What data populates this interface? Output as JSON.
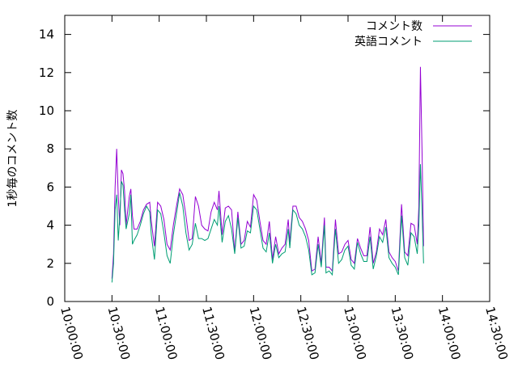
{
  "chart_data": {
    "type": "line",
    "title": "",
    "xlabel": "",
    "ylabel": "1秒毎のコメント数",
    "ylim": [
      0,
      15
    ],
    "yticks": [
      0,
      2,
      4,
      6,
      8,
      10,
      12,
      14
    ],
    "xlim": [
      "10:00:00",
      "14:30:00"
    ],
    "xticks": [
      "10:00:00",
      "10:30:00",
      "11:00:00",
      "11:30:00",
      "12:00:00",
      "12:30:00",
      "13:00:00",
      "13:30:00",
      "14:00:00",
      "14:30:00"
    ],
    "grid": false,
    "legend": "top-right",
    "series": [
      {
        "name": "コメント数",
        "color": "#9400d3",
        "points": [
          [
            "10:30:00",
            1.2
          ],
          [
            "10:31:00",
            2.5
          ],
          [
            "10:32:00",
            6.0
          ],
          [
            "10:33:00",
            8.0
          ],
          [
            "10:34:00",
            5.5
          ],
          [
            "10:35:00",
            4.0
          ],
          [
            "10:36:00",
            6.9
          ],
          [
            "10:37:00",
            6.7
          ],
          [
            "10:38:00",
            5.8
          ],
          [
            "10:39:00",
            4.0
          ],
          [
            "10:41:00",
            5.5
          ],
          [
            "10:42:00",
            5.9
          ],
          [
            "10:43:00",
            4.5
          ],
          [
            "10:44:00",
            3.8
          ],
          [
            "10:46:00",
            3.8
          ],
          [
            "10:48:00",
            4.2
          ],
          [
            "10:50:00",
            4.8
          ],
          [
            "10:52:00",
            5.1
          ],
          [
            "10:54:00",
            5.2
          ],
          [
            "10:55:00",
            4.2
          ],
          [
            "10:57:00",
            2.9
          ],
          [
            "10:59:00",
            5.2
          ],
          [
            "11:01:00",
            5.0
          ],
          [
            "11:03:00",
            4.3
          ],
          [
            "11:05:00",
            3.0
          ],
          [
            "11:07:00",
            2.7
          ],
          [
            "11:09:00",
            4.0
          ],
          [
            "11:11:00",
            5.0
          ],
          [
            "11:13:00",
            5.9
          ],
          [
            "11:15:00",
            5.6
          ],
          [
            "11:17:00",
            4.5
          ],
          [
            "11:19:00",
            3.2
          ],
          [
            "11:21:00",
            3.3
          ],
          [
            "11:23:00",
            5.5
          ],
          [
            "11:25:00",
            5.0
          ],
          [
            "11:27:00",
            4.0
          ],
          [
            "11:29:00",
            3.8
          ],
          [
            "11:31:00",
            3.7
          ],
          [
            "11:33:00",
            4.7
          ],
          [
            "11:35:00",
            5.2
          ],
          [
            "11:37:00",
            4.8
          ],
          [
            "11:38:00",
            5.8
          ],
          [
            "11:40:00",
            3.5
          ],
          [
            "11:42:00",
            4.9
          ],
          [
            "11:44:00",
            5.0
          ],
          [
            "11:46:00",
            4.8
          ],
          [
            "11:48:00",
            2.6
          ],
          [
            "11:50:00",
            4.7
          ],
          [
            "11:52:00",
            3.0
          ],
          [
            "11:54:00",
            3.2
          ],
          [
            "11:56:00",
            4.2
          ],
          [
            "11:58:00",
            3.9
          ],
          [
            "12:00:00",
            5.6
          ],
          [
            "12:02:00",
            5.3
          ],
          [
            "12:04:00",
            4.2
          ],
          [
            "12:06:00",
            3.2
          ],
          [
            "12:08:00",
            3.0
          ],
          [
            "12:10:00",
            4.2
          ],
          [
            "12:12:00",
            2.2
          ],
          [
            "12:14:00",
            3.4
          ],
          [
            "12:16:00",
            2.5
          ],
          [
            "12:18:00",
            2.8
          ],
          [
            "12:20:00",
            3.0
          ],
          [
            "12:22:00",
            4.3
          ],
          [
            "12:23:00",
            3.1
          ],
          [
            "12:25:00",
            5.0
          ],
          [
            "12:27:00",
            5.0
          ],
          [
            "12:29:00",
            4.4
          ],
          [
            "12:31:00",
            4.2
          ],
          [
            "12:33:00",
            3.8
          ],
          [
            "12:35:00",
            3.2
          ],
          [
            "12:37:00",
            1.6
          ],
          [
            "12:39:00",
            1.7
          ],
          [
            "12:41:00",
            3.4
          ],
          [
            "12:43:00",
            2.0
          ],
          [
            "12:45:00",
            4.4
          ],
          [
            "12:46:00",
            1.8
          ],
          [
            "12:48:00",
            1.8
          ],
          [
            "12:50:00",
            1.6
          ],
          [
            "12:52:00",
            4.3
          ],
          [
            "12:54:00",
            2.5
          ],
          [
            "12:56:00",
            2.6
          ],
          [
            "12:58:00",
            3.0
          ],
          [
            "13:00:00",
            3.2
          ],
          [
            "13:02:00",
            2.2
          ],
          [
            "13:04:00",
            2.0
          ],
          [
            "13:06:00",
            3.3
          ],
          [
            "13:08:00",
            2.8
          ],
          [
            "13:10:00",
            2.4
          ],
          [
            "13:12:00",
            2.4
          ],
          [
            "13:14:00",
            3.9
          ],
          [
            "13:16:00",
            2.0
          ],
          [
            "13:18:00",
            2.6
          ],
          [
            "13:20:00",
            3.8
          ],
          [
            "13:22:00",
            3.5
          ],
          [
            "13:24:00",
            4.3
          ],
          [
            "13:26:00",
            2.6
          ],
          [
            "13:28:00",
            2.3
          ],
          [
            "13:30:00",
            2.1
          ],
          [
            "13:32:00",
            1.6
          ],
          [
            "13:34:00",
            5.1
          ],
          [
            "13:36:00",
            2.6
          ],
          [
            "13:38:00",
            2.4
          ],
          [
            "13:40:00",
            4.1
          ],
          [
            "13:42:00",
            4.0
          ],
          [
            "13:44:00",
            3.0
          ],
          [
            "13:45:00",
            5.0
          ],
          [
            "13:46:00",
            12.3
          ],
          [
            "13:47:00",
            8.0
          ],
          [
            "13:48:00",
            2.9
          ]
        ]
      },
      {
        "name": "英語コメント",
        "color": "#009e73",
        "points": [
          [
            "10:30:00",
            1.0
          ],
          [
            "10:31:00",
            2.0
          ],
          [
            "10:32:00",
            4.8
          ],
          [
            "10:33:00",
            5.6
          ],
          [
            "10:34:00",
            3.2
          ],
          [
            "10:35:00",
            4.5
          ],
          [
            "10:36:00",
            6.3
          ],
          [
            "10:37:00",
            6.1
          ],
          [
            "10:38:00",
            4.8
          ],
          [
            "10:39:00",
            3.8
          ],
          [
            "10:41:00",
            4.6
          ],
          [
            "10:42:00",
            5.6
          ],
          [
            "10:43:00",
            3.0
          ],
          [
            "10:44:00",
            3.2
          ],
          [
            "10:46:00",
            3.5
          ],
          [
            "10:48:00",
            4.0
          ],
          [
            "10:50:00",
            4.6
          ],
          [
            "10:52:00",
            5.0
          ],
          [
            "10:54:00",
            4.7
          ],
          [
            "10:55:00",
            3.5
          ],
          [
            "10:57:00",
            2.2
          ],
          [
            "10:59:00",
            4.8
          ],
          [
            "11:01:00",
            4.6
          ],
          [
            "11:03:00",
            3.6
          ],
          [
            "11:05:00",
            2.4
          ],
          [
            "11:07:00",
            2.0
          ],
          [
            "11:09:00",
            3.5
          ],
          [
            "11:11:00",
            4.6
          ],
          [
            "11:13:00",
            5.7
          ],
          [
            "11:15:00",
            5.0
          ],
          [
            "11:17:00",
            3.6
          ],
          [
            "11:19:00",
            2.7
          ],
          [
            "11:21:00",
            3.0
          ],
          [
            "11:23:00",
            4.1
          ],
          [
            "11:25:00",
            3.3
          ],
          [
            "11:27:00",
            3.3
          ],
          [
            "11:29:00",
            3.2
          ],
          [
            "11:31:00",
            3.3
          ],
          [
            "11:33:00",
            3.8
          ],
          [
            "11:35:00",
            4.3
          ],
          [
            "11:37:00",
            4.0
          ],
          [
            "11:38:00",
            5.0
          ],
          [
            "11:40:00",
            3.1
          ],
          [
            "11:42:00",
            4.2
          ],
          [
            "11:44:00",
            4.5
          ],
          [
            "11:46:00",
            3.8
          ],
          [
            "11:48:00",
            2.5
          ],
          [
            "11:50:00",
            4.4
          ],
          [
            "11:52:00",
            2.8
          ],
          [
            "11:54:00",
            2.9
          ],
          [
            "11:56:00",
            3.7
          ],
          [
            "11:58:00",
            3.6
          ],
          [
            "12:00:00",
            5.0
          ],
          [
            "12:02:00",
            4.8
          ],
          [
            "12:04:00",
            3.8
          ],
          [
            "12:06:00",
            2.8
          ],
          [
            "12:08:00",
            2.6
          ],
          [
            "12:10:00",
            3.6
          ],
          [
            "12:12:00",
            2.0
          ],
          [
            "12:14:00",
            3.0
          ],
          [
            "12:16:00",
            2.3
          ],
          [
            "12:18:00",
            2.5
          ],
          [
            "12:20:00",
            2.6
          ],
          [
            "12:22:00",
            3.8
          ],
          [
            "12:23:00",
            2.8
          ],
          [
            "12:25:00",
            4.8
          ],
          [
            "12:27:00",
            4.6
          ],
          [
            "12:29:00",
            4.0
          ],
          [
            "12:31:00",
            3.8
          ],
          [
            "12:33:00",
            3.4
          ],
          [
            "12:35:00",
            2.7
          ],
          [
            "12:37:00",
            1.4
          ],
          [
            "12:39:00",
            1.5
          ],
          [
            "12:41:00",
            3.0
          ],
          [
            "12:43:00",
            1.8
          ],
          [
            "12:45:00",
            4.0
          ],
          [
            "12:46:00",
            1.5
          ],
          [
            "12:48:00",
            1.6
          ],
          [
            "12:50:00",
            1.4
          ],
          [
            "12:52:00",
            3.8
          ],
          [
            "12:54:00",
            2.0
          ],
          [
            "12:56:00",
            2.2
          ],
          [
            "12:58:00",
            2.7
          ],
          [
            "13:00:00",
            2.9
          ],
          [
            "13:02:00",
            1.9
          ],
          [
            "13:04:00",
            1.7
          ],
          [
            "13:06:00",
            3.1
          ],
          [
            "13:08:00",
            2.5
          ],
          [
            "13:10:00",
            2.1
          ],
          [
            "13:12:00",
            2.1
          ],
          [
            "13:14:00",
            3.4
          ],
          [
            "13:16:00",
            1.7
          ],
          [
            "13:18:00",
            2.4
          ],
          [
            "13:20:00",
            3.4
          ],
          [
            "13:22:00",
            3.1
          ],
          [
            "13:24:00",
            3.9
          ],
          [
            "13:26:00",
            2.3
          ],
          [
            "13:28:00",
            2.0
          ],
          [
            "13:30:00",
            1.8
          ],
          [
            "13:32:00",
            1.4
          ],
          [
            "13:34:00",
            4.5
          ],
          [
            "13:36:00",
            2.3
          ],
          [
            "13:38:00",
            1.9
          ],
          [
            "13:40:00",
            3.6
          ],
          [
            "13:42:00",
            3.4
          ],
          [
            "13:44:00",
            2.5
          ],
          [
            "13:45:00",
            4.0
          ],
          [
            "13:46:00",
            7.2
          ],
          [
            "13:47:00",
            4.8
          ],
          [
            "13:48:00",
            2.0
          ]
        ]
      }
    ]
  }
}
